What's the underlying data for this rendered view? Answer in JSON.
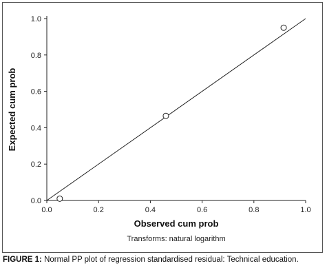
{
  "chart_data": {
    "type": "scatter",
    "xlabel": "Observed cum prob",
    "ylabel": "Expected cum prob",
    "xlim": [
      0.0,
      1.0
    ],
    "ylim": [
      0.0,
      1.0
    ],
    "x_ticks": [
      "0.0",
      "0.2",
      "0.4",
      "0.6",
      "0.8",
      "1.0"
    ],
    "y_ticks": [
      "0.0",
      "0.2",
      "0.4",
      "0.6",
      "0.8",
      "1.0"
    ],
    "grid": false,
    "reference_line": {
      "from": [
        0.0,
        0.0
      ],
      "to": [
        1.0,
        1.0
      ]
    },
    "points": [
      {
        "x": 0.05,
        "y": 0.01
      },
      {
        "x": 0.46,
        "y": 0.465
      },
      {
        "x": 0.915,
        "y": 0.95
      }
    ],
    "annotation": "Transforms: natural logarithm"
  },
  "caption": {
    "label": "FIGURE 1:",
    "text": " Normal PP plot of regression standardised residual: Technical education."
  },
  "colors": {
    "axis": "#222222",
    "marker_edge": "#222222",
    "marker_fill": "#ffffff",
    "frame": "#555555"
  }
}
